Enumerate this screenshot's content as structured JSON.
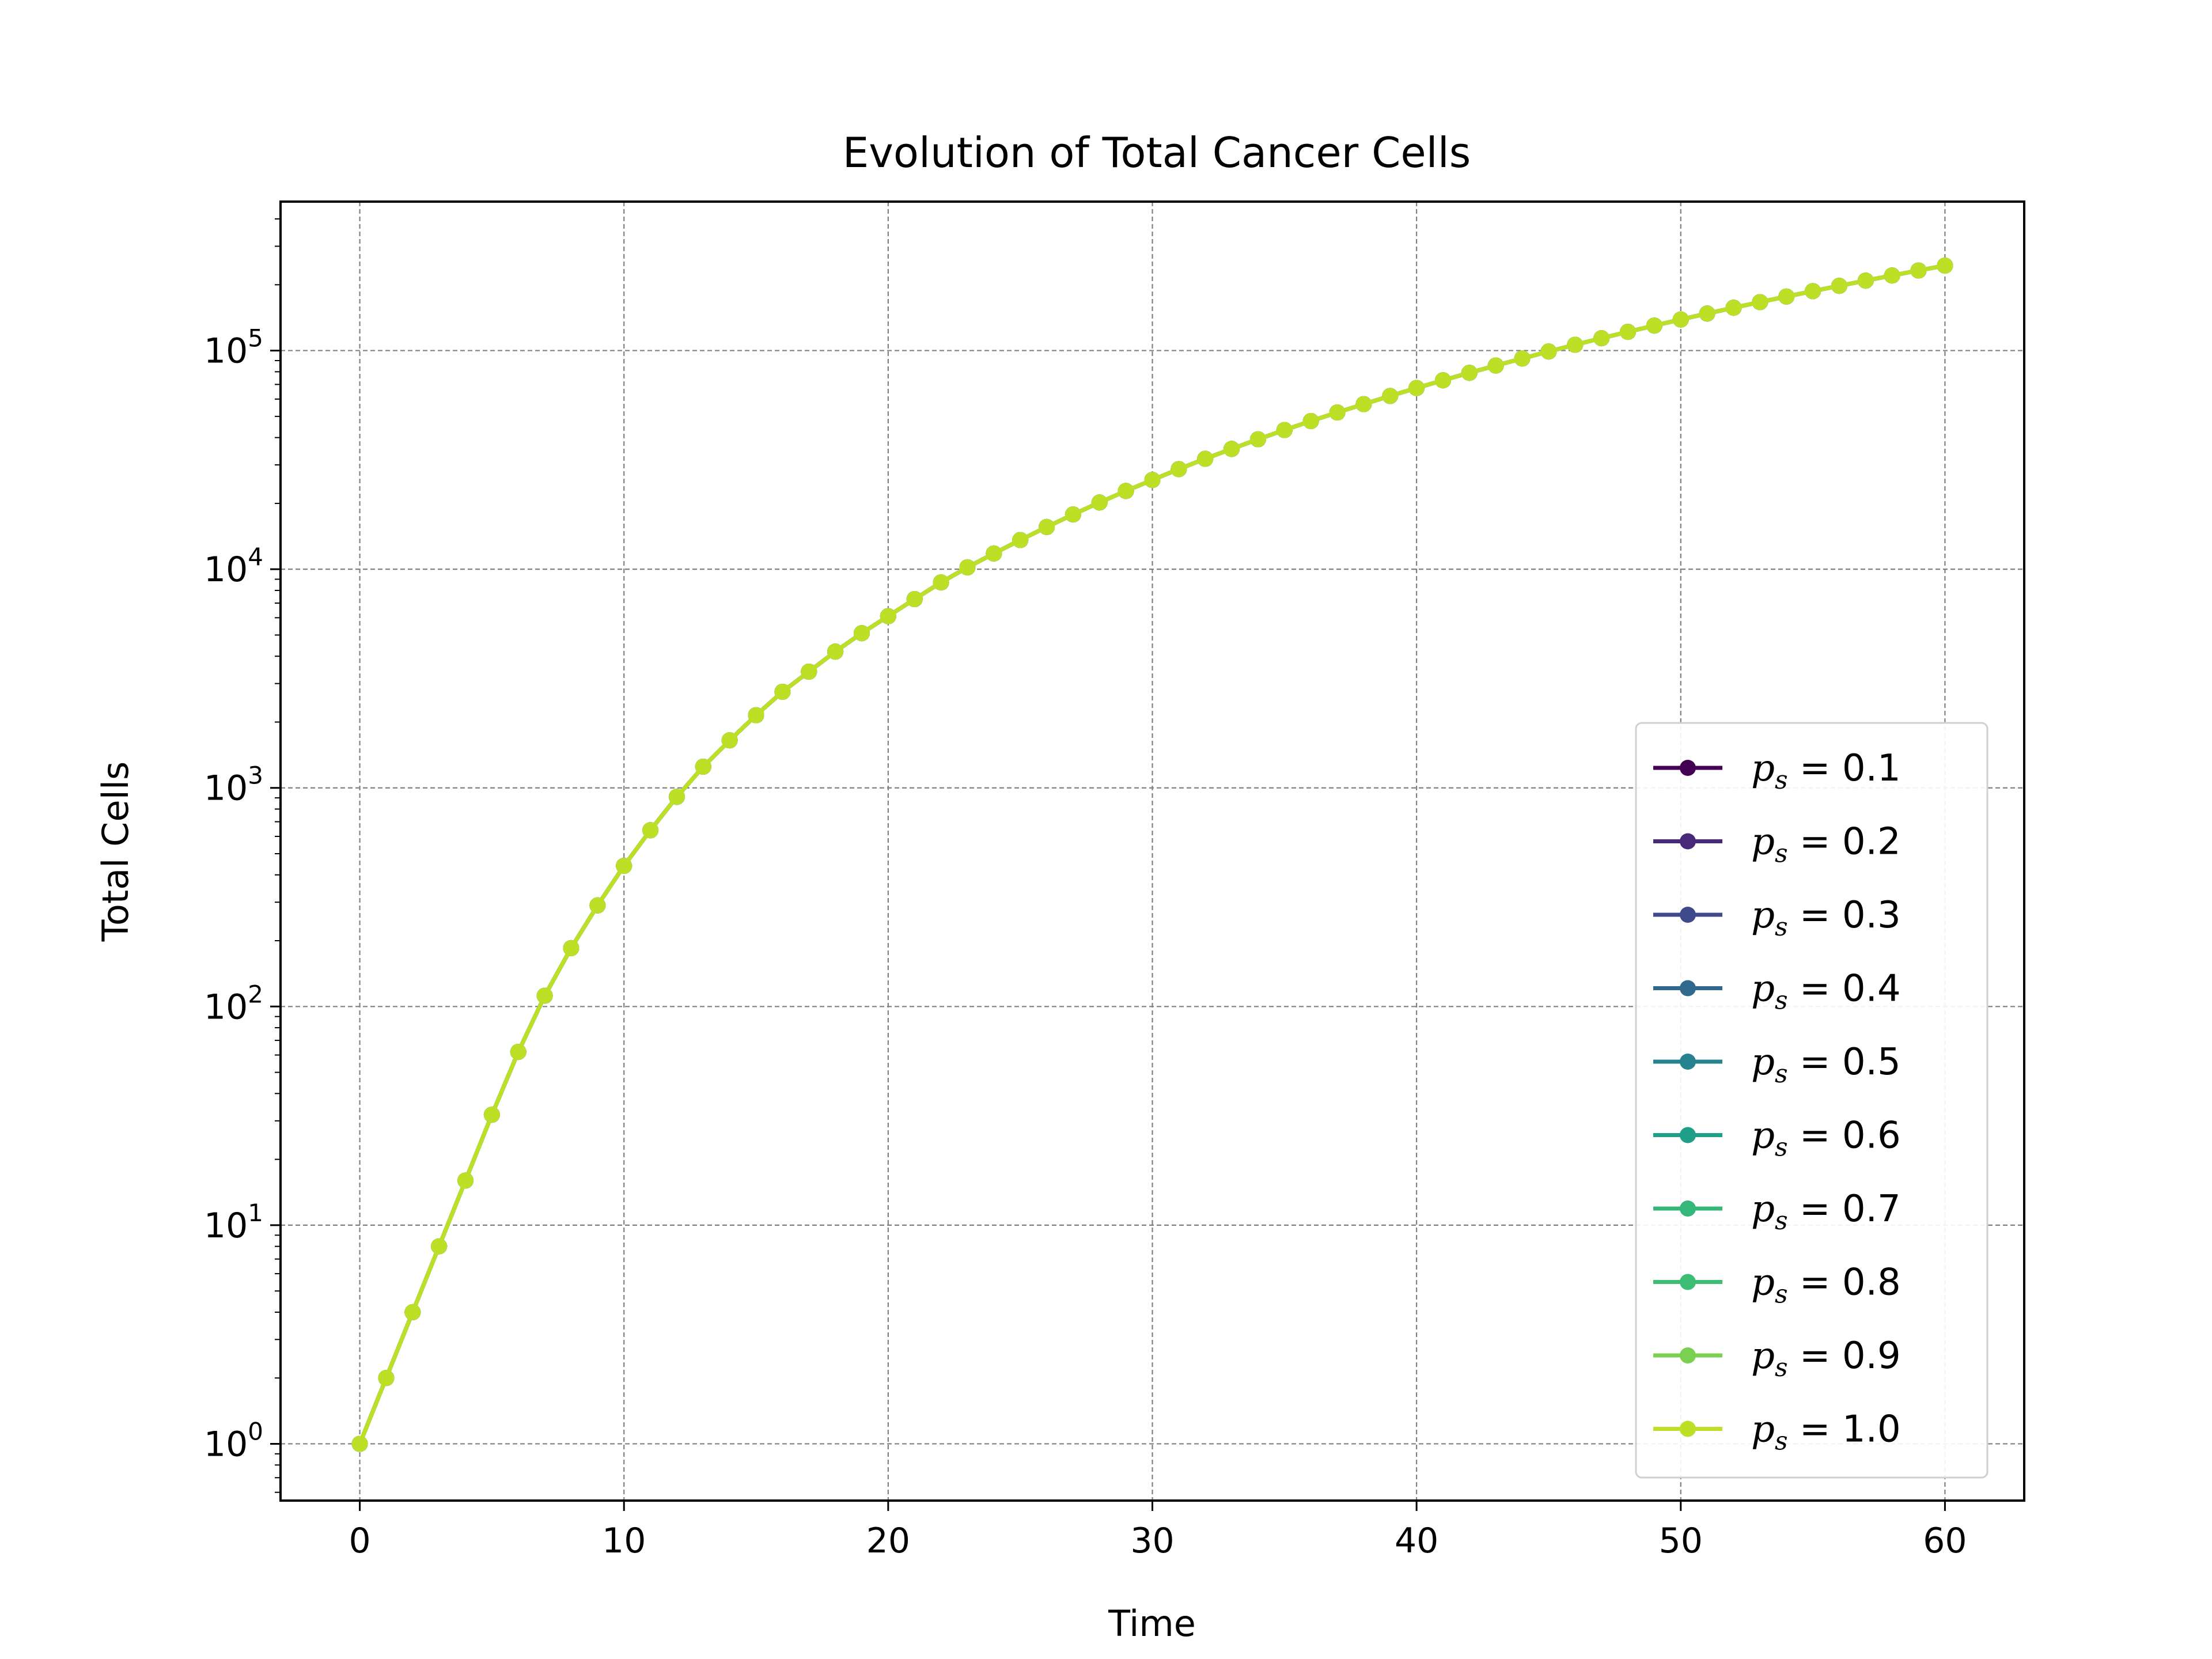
{
  "chart_data": {
    "type": "line",
    "title": "Evolution of Total Cancer Cells",
    "xlabel": "Time",
    "ylabel": "Total Cells",
    "x_scale": "linear",
    "y_scale": "log",
    "xlim": [
      -3,
      63
    ],
    "ylim": [
      0.55,
      480000
    ],
    "xticks": [
      0,
      10,
      20,
      30,
      40,
      50,
      60
    ],
    "x_tick_labels": [
      "0",
      "10",
      "20",
      "30",
      "40",
      "50",
      "60"
    ],
    "yticks": [
      {
        "value": 1,
        "base": "10",
        "exp": "0"
      },
      {
        "value": 10,
        "base": "10",
        "exp": "1"
      },
      {
        "value": 100,
        "base": "10",
        "exp": "2"
      },
      {
        "value": 1000,
        "base": "10",
        "exp": "3"
      },
      {
        "value": 10000,
        "base": "10",
        "exp": "4"
      },
      {
        "value": 100000,
        "base": "10",
        "exp": "5"
      }
    ],
    "grid": true,
    "legend_position": "lower-right",
    "x": [
      0,
      1,
      2,
      3,
      4,
      5,
      6,
      7,
      8,
      9,
      10,
      11,
      12,
      13,
      14,
      15,
      16,
      17,
      18,
      19,
      20,
      21,
      22,
      23,
      24,
      25,
      26,
      27,
      28,
      29,
      30,
      31,
      32,
      33,
      34,
      35,
      36,
      37,
      38,
      39,
      40,
      41,
      42,
      43,
      44,
      45,
      46,
      47,
      48,
      49,
      50,
      51,
      52,
      53,
      54,
      55,
      56,
      57,
      58,
      59,
      60
    ],
    "shared_y": [
      1,
      2,
      4,
      8,
      16,
      32,
      62,
      112,
      185,
      290,
      440,
      640,
      910,
      1250,
      1650,
      2150,
      2750,
      3400,
      4200,
      5100,
      6100,
      7300,
      8700,
      10200,
      11800,
      13600,
      15600,
      17800,
      20200,
      22800,
      25600,
      28700,
      32000,
      35500,
      39300,
      43300,
      47600,
      52100,
      56900,
      62000,
      67400,
      73100,
      79100,
      85400,
      92000,
      99000,
      106300,
      113900,
      121800,
      130100,
      138700,
      147700,
      157000,
      166600,
      176600,
      187000,
      197800,
      208900,
      220500,
      232400,
      244700
    ],
    "series": [
      {
        "name_prefix": "p",
        "name_sub": "s",
        "name_suffix": " = 0.1",
        "color": "#440154"
      },
      {
        "name_prefix": "p",
        "name_sub": "s",
        "name_suffix": " = 0.2",
        "color": "#482878"
      },
      {
        "name_prefix": "p",
        "name_sub": "s",
        "name_suffix": " = 0.3",
        "color": "#3e4a89"
      },
      {
        "name_prefix": "p",
        "name_sub": "s",
        "name_suffix": " = 0.4",
        "color": "#31688e"
      },
      {
        "name_prefix": "p",
        "name_sub": "s",
        "name_suffix": " = 0.5",
        "color": "#26828e"
      },
      {
        "name_prefix": "p",
        "name_sub": "s",
        "name_suffix": " = 0.6",
        "color": "#1f9e89"
      },
      {
        "name_prefix": "p",
        "name_sub": "s",
        "name_suffix": " = 0.7",
        "color": "#35b779"
      },
      {
        "name_prefix": "p",
        "name_sub": "s",
        "name_suffix": " = 0.8",
        "color": "#3dbc74"
      },
      {
        "name_prefix": "p",
        "name_sub": "s",
        "name_suffix": " = 0.9",
        "color": "#7ad151"
      },
      {
        "name_prefix": "p",
        "name_sub": "s",
        "name_suffix": " = 1.0",
        "color": "#bddf26"
      }
    ]
  }
}
